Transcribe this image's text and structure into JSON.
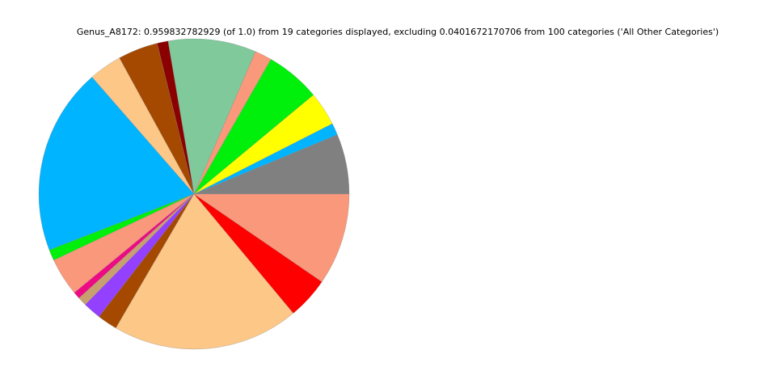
{
  "chart_data": {
    "type": "pie",
    "title": "Genus_A8172: 0.959832782929 (of 1.0) from 19 categories displayed, excluding 0.0401672170706 from 100 categories ('All Other Categories')",
    "start_angle_deg": 0,
    "direction": "counterclockwise",
    "legend": "none",
    "slices": [
      {
        "value": 0.06,
        "color": "#808080"
      },
      {
        "value": 0.012,
        "color": "#00B4FF"
      },
      {
        "value": 0.034,
        "color": "#FFFF00"
      },
      {
        "value": 0.055,
        "color": "#00F00C"
      },
      {
        "value": 0.017,
        "color": "#F9987A"
      },
      {
        "value": 0.088,
        "color": "#80C99A"
      },
      {
        "value": 0.011,
        "color": "#8B0000"
      },
      {
        "value": 0.04,
        "color": "#A54800"
      },
      {
        "value": 0.033,
        "color": "#FDC788"
      },
      {
        "value": 0.187,
        "color": "#00B4FF"
      },
      {
        "value": 0.011,
        "color": "#00F00C"
      },
      {
        "value": 0.038,
        "color": "#F9987A"
      },
      {
        "value": 0.007,
        "color": "#EE0A84"
      },
      {
        "value": 0.009,
        "color": "#C8A070"
      },
      {
        "value": 0.018,
        "color": "#9340FF"
      },
      {
        "value": 0.02,
        "color": "#A54800"
      },
      {
        "value": 0.187,
        "color": "#FDC788"
      },
      {
        "value": 0.042,
        "color": "#FF0000"
      },
      {
        "value": 0.092,
        "color": "#F9987A"
      }
    ]
  }
}
